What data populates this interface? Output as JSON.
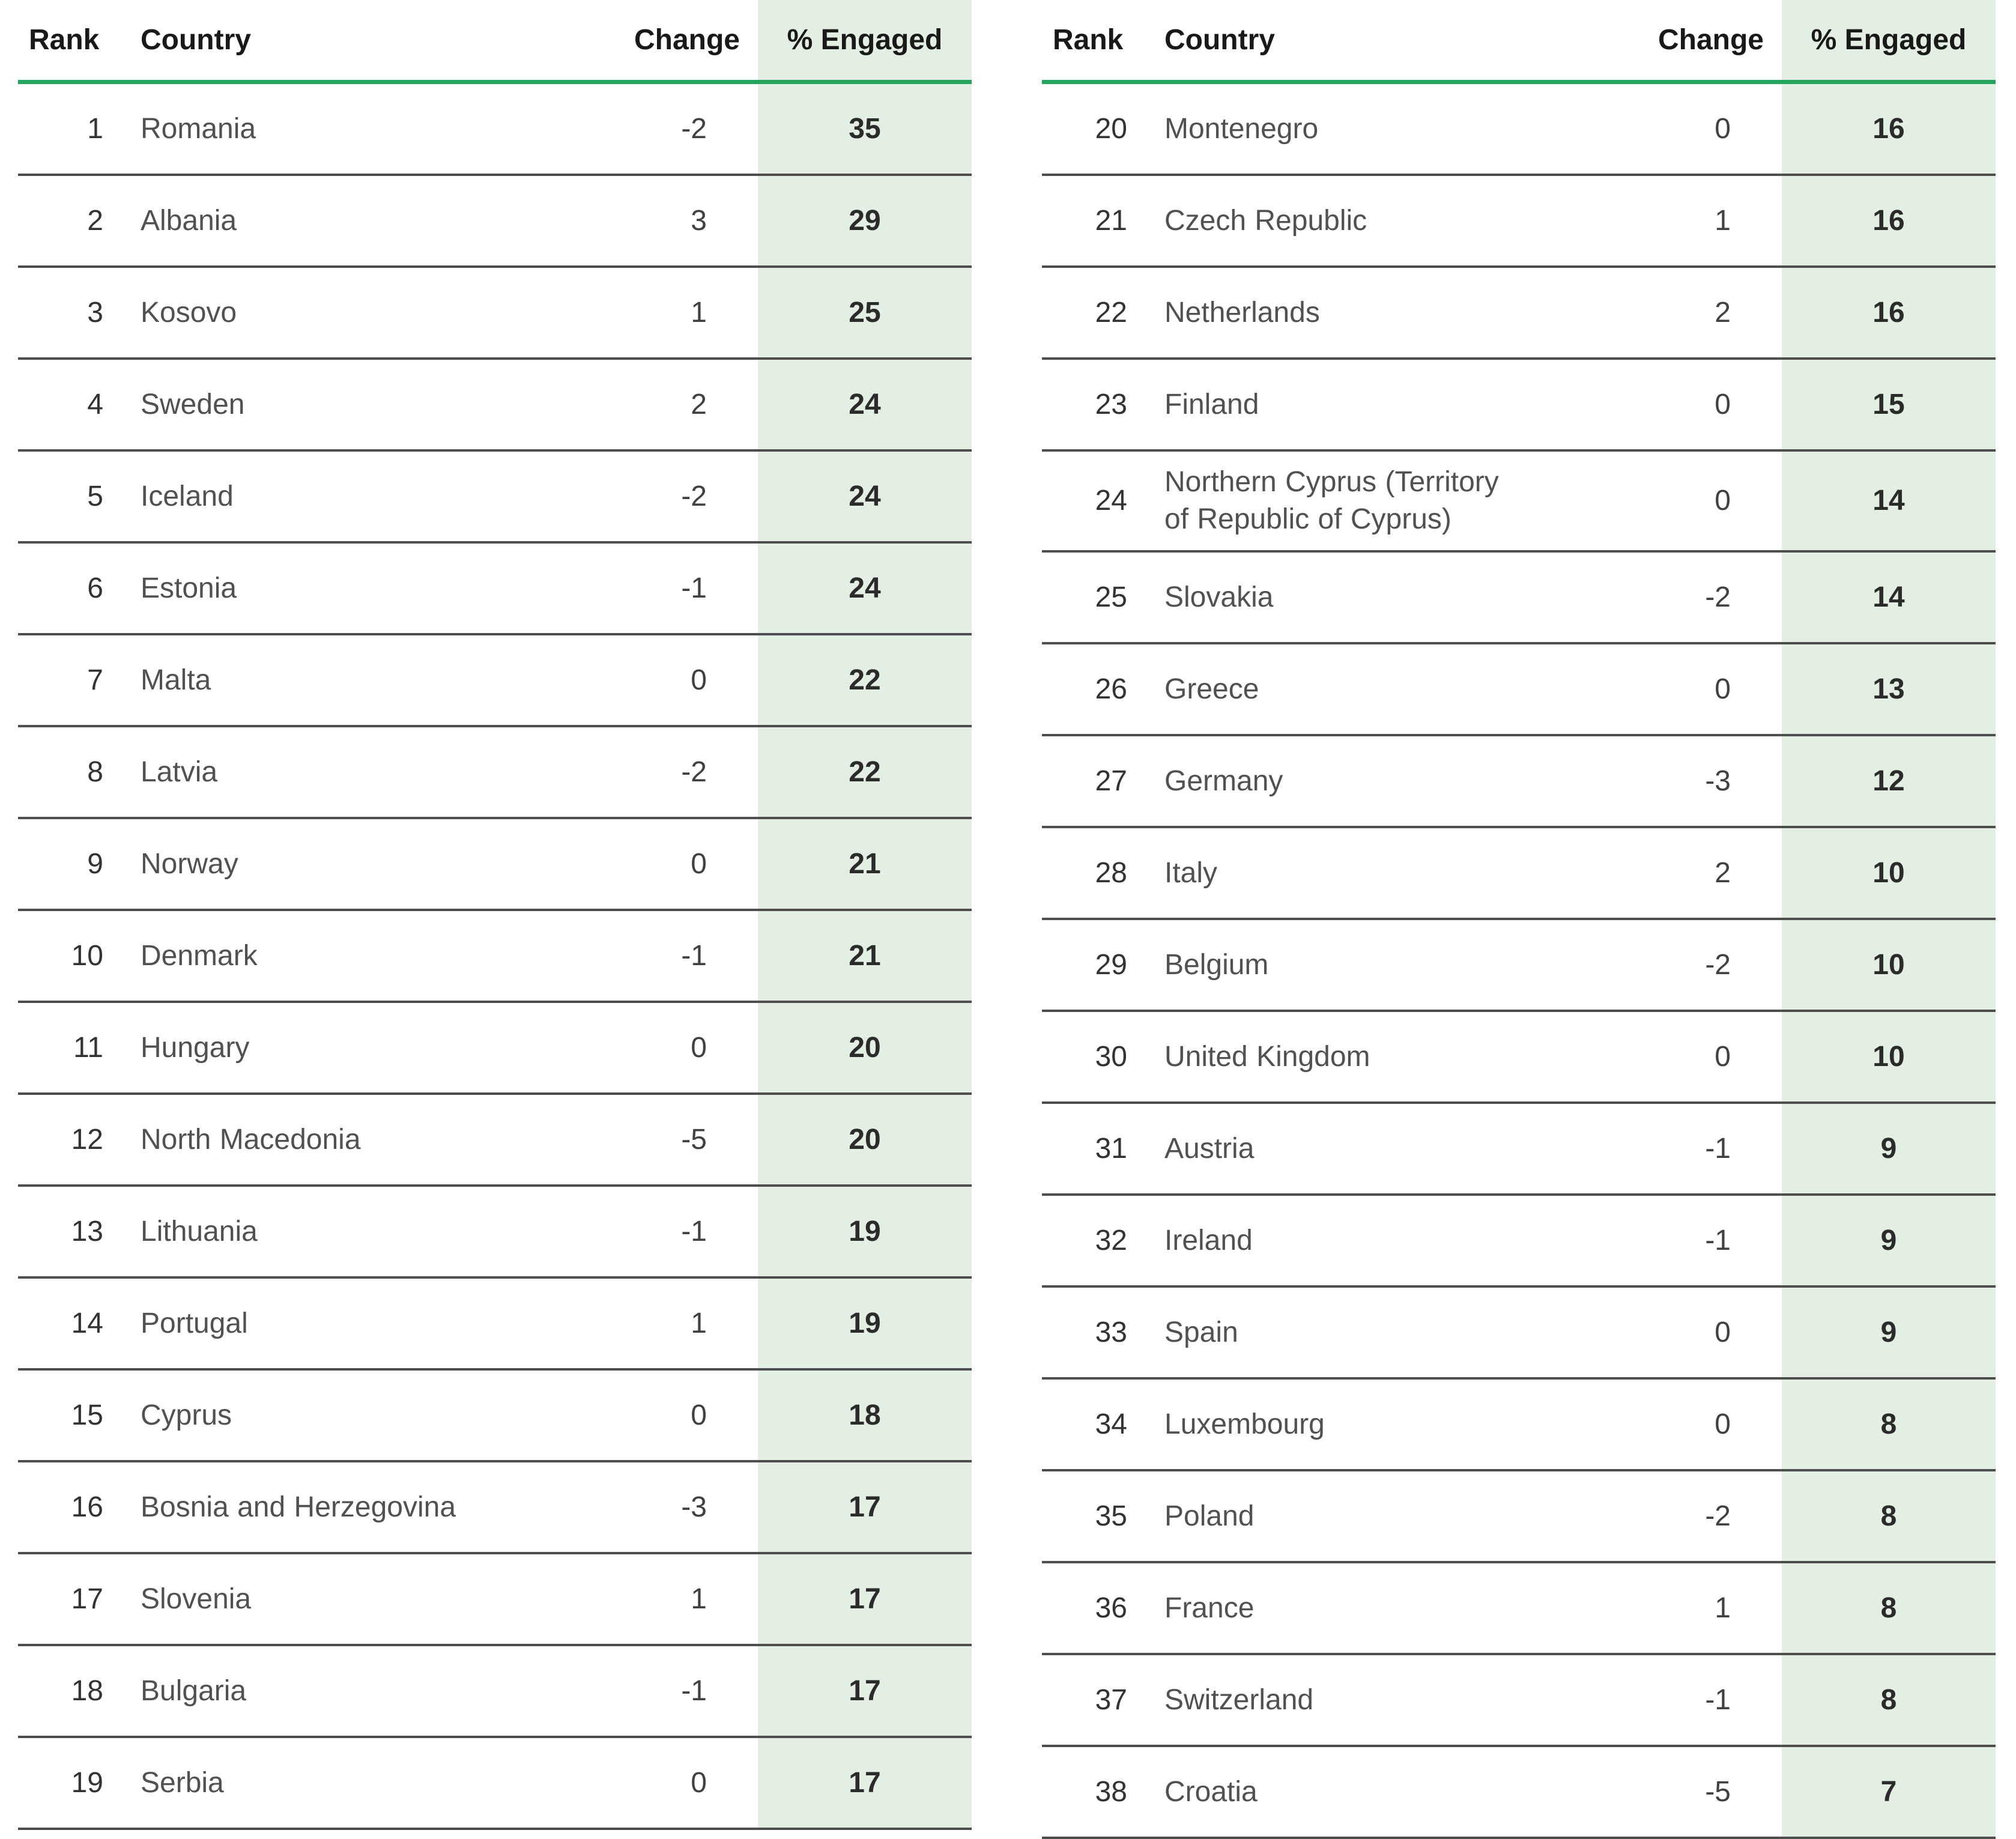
{
  "columns": {
    "rank": "Rank",
    "country": "Country",
    "change": "Change",
    "engaged": "% Engaged"
  },
  "colors": {
    "header_rule_green": "#24A45D",
    "engaged_band_green": "#E4EFE3",
    "row_divider_gray": "#4E4E4E"
  },
  "chart_data": {
    "type": "table",
    "title": "",
    "columns": [
      "Rank",
      "Country",
      "Change",
      "% Engaged"
    ],
    "tables": [
      {
        "rows": [
          {
            "rank": "1",
            "country": "Romania",
            "change": "-2",
            "engaged": "35"
          },
          {
            "rank": "2",
            "country": "Albania",
            "change": "3",
            "engaged": "29"
          },
          {
            "rank": "3",
            "country": "Kosovo",
            "change": "1",
            "engaged": "25"
          },
          {
            "rank": "4",
            "country": "Sweden",
            "change": "2",
            "engaged": "24"
          },
          {
            "rank": "5",
            "country": "Iceland",
            "change": "-2",
            "engaged": "24"
          },
          {
            "rank": "6",
            "country": "Estonia",
            "change": "-1",
            "engaged": "24"
          },
          {
            "rank": "7",
            "country": "Malta",
            "change": "0",
            "engaged": "22"
          },
          {
            "rank": "8",
            "country": "Latvia",
            "change": "-2",
            "engaged": "22"
          },
          {
            "rank": "9",
            "country": "Norway",
            "change": "0",
            "engaged": "21"
          },
          {
            "rank": "10",
            "country": "Denmark",
            "change": "-1",
            "engaged": "21"
          },
          {
            "rank": "11",
            "country": "Hungary",
            "change": "0",
            "engaged": "20"
          },
          {
            "rank": "12",
            "country": "North Macedonia",
            "change": "-5",
            "engaged": "20"
          },
          {
            "rank": "13",
            "country": "Lithuania",
            "change": "-1",
            "engaged": "19"
          },
          {
            "rank": "14",
            "country": "Portugal",
            "change": "1",
            "engaged": "19"
          },
          {
            "rank": "15",
            "country": "Cyprus",
            "change": "0",
            "engaged": "18"
          },
          {
            "rank": "16",
            "country": "Bosnia and Herzegovina",
            "change": "-3",
            "engaged": "17"
          },
          {
            "rank": "17",
            "country": "Slovenia",
            "change": "1",
            "engaged": "17"
          },
          {
            "rank": "18",
            "country": "Bulgaria",
            "change": "-1",
            "engaged": "17"
          },
          {
            "rank": "19",
            "country": "Serbia",
            "change": "0",
            "engaged": "17"
          }
        ]
      },
      {
        "rows": [
          {
            "rank": "20",
            "country": "Montenegro",
            "change": "0",
            "engaged": "16"
          },
          {
            "rank": "21",
            "country": "Czech Republic",
            "change": "1",
            "engaged": "16"
          },
          {
            "rank": "22",
            "country": "Netherlands",
            "change": "2",
            "engaged": "16"
          },
          {
            "rank": "23",
            "country": "Finland",
            "change": "0",
            "engaged": "15"
          },
          {
            "rank": "24",
            "country": "Northern Cyprus (Territory of Republic of Cyprus)",
            "change": "0",
            "engaged": "14"
          },
          {
            "rank": "25",
            "country": "Slovakia",
            "change": "-2",
            "engaged": "14"
          },
          {
            "rank": "26",
            "country": "Greece",
            "change": "0",
            "engaged": "13"
          },
          {
            "rank": "27",
            "country": "Germany",
            "change": "-3",
            "engaged": "12"
          },
          {
            "rank": "28",
            "country": "Italy",
            "change": "2",
            "engaged": "10"
          },
          {
            "rank": "29",
            "country": "Belgium",
            "change": "-2",
            "engaged": "10"
          },
          {
            "rank": "30",
            "country": "United Kingdom",
            "change": "0",
            "engaged": "10"
          },
          {
            "rank": "31",
            "country": "Austria",
            "change": "-1",
            "engaged": "9"
          },
          {
            "rank": "32",
            "country": "Ireland",
            "change": "-1",
            "engaged": "9"
          },
          {
            "rank": "33",
            "country": "Spain",
            "change": "0",
            "engaged": "9"
          },
          {
            "rank": "34",
            "country": "Luxembourg",
            "change": "0",
            "engaged": "8"
          },
          {
            "rank": "35",
            "country": "Poland",
            "change": "-2",
            "engaged": "8"
          },
          {
            "rank": "36",
            "country": "France",
            "change": "1",
            "engaged": "8"
          },
          {
            "rank": "37",
            "country": "Switzerland",
            "change": "-1",
            "engaged": "8"
          },
          {
            "rank": "38",
            "country": "Croatia",
            "change": "-5",
            "engaged": "7"
          }
        ]
      }
    ]
  }
}
